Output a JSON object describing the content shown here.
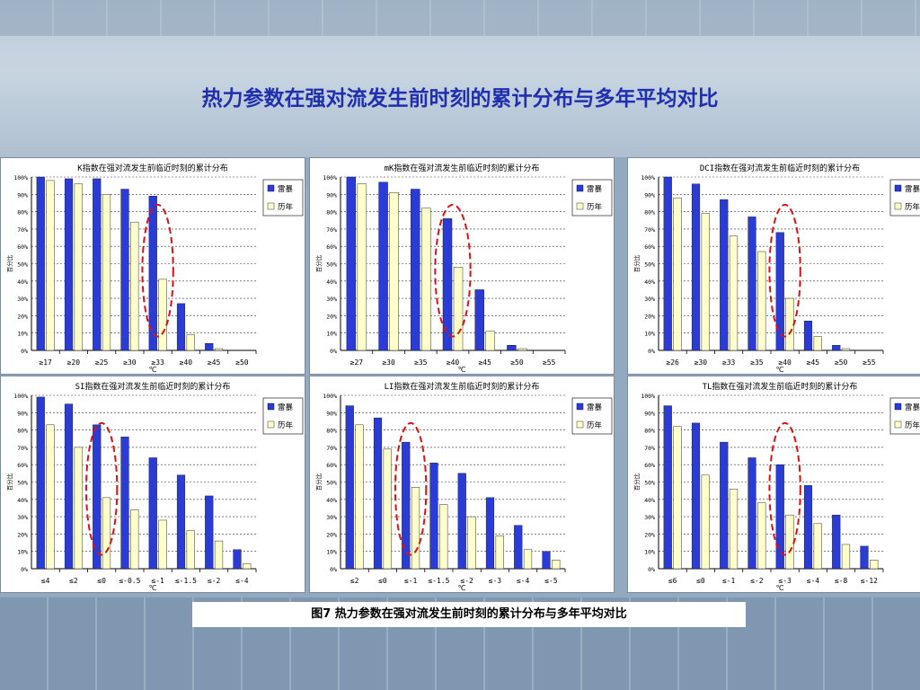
{
  "page": {
    "title": "热力参数在强对流发生前时刻的累计分布与多年平均对比",
    "caption": "图7   热力参数在强对流发生前时刻的累计分布与多年平均对比"
  },
  "colors": {
    "series1": "#2b3bd6",
    "series2": "#ffffcc",
    "highlight": "#dd1111"
  },
  "chart_data": [
    {
      "type": "bar",
      "title": "K指数在强对流发生前临近时刻的累计分布",
      "ylabel": "百分比",
      "xlabel": "℃",
      "ylim": [
        0,
        100
      ],
      "yticks": [
        "0%",
        "10%",
        "20%",
        "30%",
        "40%",
        "50%",
        "60%",
        "70%",
        "80%",
        "90%",
        "100%"
      ],
      "categories": [
        "≥17",
        "≥20",
        "≥25",
        "≥30",
        "≥33",
        "≥40",
        "≥45",
        "≥50"
      ],
      "series": [
        {
          "name": "雷暴",
          "values": [
            100,
            99,
            99,
            93,
            89,
            27,
            4,
            0
          ]
        },
        {
          "name": "历年",
          "values": [
            98,
            96,
            90,
            74,
            41,
            9,
            1,
            0
          ]
        }
      ],
      "legend": "top-right",
      "highlight_index": 4
    },
    {
      "type": "bar",
      "title": "mK指数在强对流发生前临近时刻的累计分布",
      "ylabel": "百分比",
      "xlabel": "℃",
      "ylim": [
        0,
        100
      ],
      "yticks": [
        "0%",
        "10%",
        "20%",
        "30%",
        "40%",
        "50%",
        "60%",
        "70%",
        "80%",
        "90%",
        "100%"
      ],
      "categories": [
        "≥27",
        "≥30",
        "≥35",
        "≥40",
        "≥45",
        "≥50",
        "≥55"
      ],
      "series": [
        {
          "name": "雷暴",
          "values": [
            100,
            97,
            93,
            76,
            35,
            3,
            0
          ]
        },
        {
          "name": "历年",
          "values": [
            96,
            91,
            82,
            48,
            11,
            1,
            0
          ]
        }
      ],
      "legend": "top-right",
      "highlight_index": 3
    },
    {
      "type": "bar",
      "title": "DCI指数在强对流发生前临近时刻的累计分布",
      "ylabel": "百分比",
      "xlabel": "℃",
      "ylim": [
        0,
        100
      ],
      "yticks": [
        "0%",
        "10%",
        "20%",
        "30%",
        "40%",
        "50%",
        "60%",
        "70%",
        "80%",
        "90%",
        "100%"
      ],
      "categories": [
        "≥26",
        "≥30",
        "≥33",
        "≥35",
        "≥40",
        "≥45",
        "≥50",
        "≥55"
      ],
      "series": [
        {
          "name": "雷暴",
          "values": [
            100,
            96,
            87,
            77,
            68,
            17,
            3,
            0
          ]
        },
        {
          "name": "历年",
          "values": [
            88,
            79,
            66,
            57,
            30,
            8,
            1,
            0
          ]
        }
      ],
      "legend": "top-right",
      "highlight_index": 4
    },
    {
      "type": "bar",
      "title": "SI指数在强对流发生前临近时刻的累计分布",
      "ylabel": "百分比",
      "xlabel": "℃",
      "ylim": [
        0,
        100
      ],
      "yticks": [
        "0%",
        "10%",
        "20%",
        "30%",
        "40%",
        "50%",
        "60%",
        "70%",
        "80%",
        "90%",
        "100%"
      ],
      "categories": [
        "≤4",
        "≤2",
        "≤0",
        "≤-0.5",
        "≤-1",
        "≤-1.5",
        "≤-2",
        "≤-4"
      ],
      "series": [
        {
          "name": "雷暴",
          "values": [
            99,
            95,
            83,
            76,
            64,
            54,
            42,
            11
          ]
        },
        {
          "name": "历年",
          "values": [
            83,
            70,
            41,
            34,
            28,
            22,
            16,
            3
          ]
        }
      ],
      "legend": "top-right",
      "highlight_index": 2
    },
    {
      "type": "bar",
      "title": "LI指数在强对流发生前临近时刻的累计分布",
      "ylabel": "百分比",
      "xlabel": "℃",
      "ylim": [
        0,
        100
      ],
      "yticks": [
        "0%",
        "10%",
        "20%",
        "30%",
        "40%",
        "50%",
        "60%",
        "70%",
        "80%",
        "90%",
        "100%"
      ],
      "categories": [
        "≤2",
        "≤0",
        "≤-1",
        "≤-1.5",
        "≤-2",
        "≤-3",
        "≤-4",
        "≤-5"
      ],
      "series": [
        {
          "name": "雷暴",
          "values": [
            94,
            87,
            73,
            61,
            55,
            41,
            25,
            10
          ]
        },
        {
          "name": "历年",
          "values": [
            83,
            69,
            47,
            37,
            30,
            19,
            11,
            5
          ]
        }
      ],
      "legend": "top-right",
      "highlight_index": 2
    },
    {
      "type": "bar",
      "title": "TL指数在强对流发生前临近时刻的累计分布",
      "ylabel": "百分比",
      "xlabel": "℃",
      "ylim": [
        0,
        100
      ],
      "yticks": [
        "0%",
        "10%",
        "20%",
        "30%",
        "40%",
        "50%",
        "60%",
        "70%",
        "80%",
        "90%",
        "100%"
      ],
      "categories": [
        "≤6",
        "≤0",
        "≤-1",
        "≤-2",
        "≤-3",
        "≤-4",
        "≤-8",
        "≤-12"
      ],
      "series": [
        {
          "name": "雷暴",
          "values": [
            94,
            84,
            73,
            64,
            60,
            48,
            31,
            13
          ]
        },
        {
          "name": "历年",
          "values": [
            82,
            54,
            46,
            38,
            31,
            26,
            14,
            5
          ]
        }
      ],
      "legend": "top-right",
      "highlight_index": 4
    }
  ]
}
